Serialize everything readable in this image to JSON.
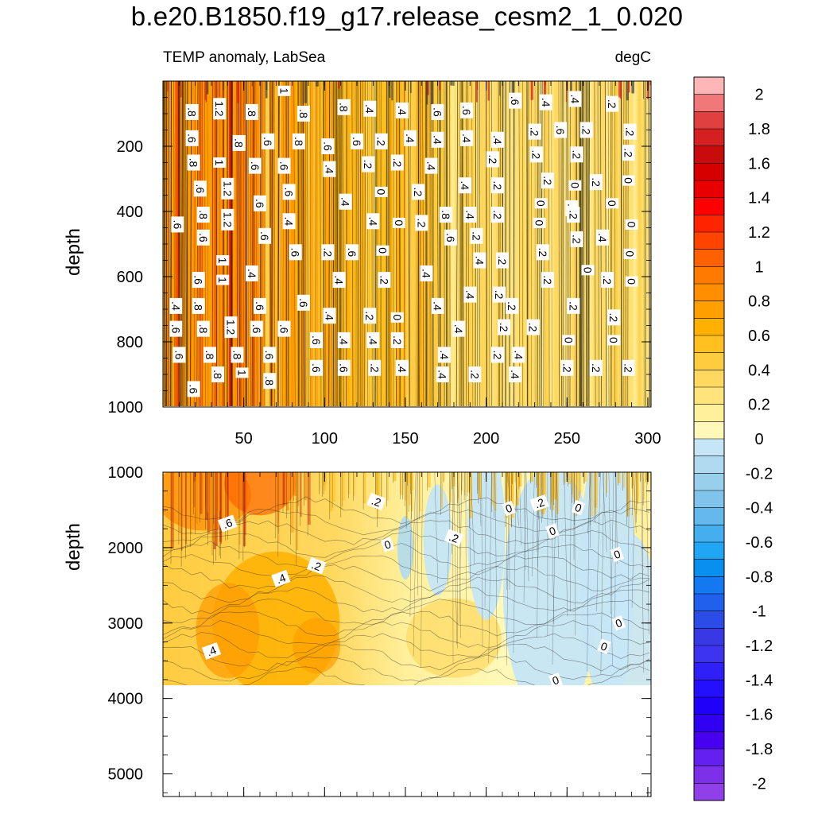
{
  "chart_data": {
    "type": "heatmap",
    "title": "b.e20.B1850.f19_g17.release_cesm2_1_0.020",
    "subtitle_left": "TEMP anomaly, LabSea",
    "subtitle_right": "degC",
    "x": {
      "range": [
        0,
        302
      ],
      "ticks": [
        50,
        100,
        150,
        200,
        250,
        300
      ],
      "tick_labels": [
        "50",
        "100",
        "150",
        "200",
        "250",
        "300"
      ]
    },
    "panels": [
      {
        "name": "upper",
        "ylabel": "depth",
        "ylim": [
          1000,
          0
        ],
        "y_ticks": [
          200,
          400,
          600,
          800,
          1000
        ],
        "y_tick_labels": [
          "200",
          "400",
          "600",
          "800",
          "1000"
        ],
        "description": "Upper ocean 0-1000 m, strongly vertical banded anomaly; warmest (about 0.8-1.2) for x < 60, about 0.4-0.6 mid, about 0-0.2 for x > 220",
        "contour_labels": [
          {
            "x": 18,
            "d": 95,
            "t": ".8"
          },
          {
            "x": 35,
            "d": 85,
            "t": "1.2"
          },
          {
            "x": 55,
            "d": 95,
            "t": ".8"
          },
          {
            "x": 75,
            "d": 30,
            "t": "1"
          },
          {
            "x": 87,
            "d": 100,
            "t": ".8"
          },
          {
            "x": 112,
            "d": 80,
            "t": ".8"
          },
          {
            "x": 128,
            "d": 85,
            "t": ".4"
          },
          {
            "x": 148,
            "d": 90,
            "t": ".4"
          },
          {
            "x": 170,
            "d": 95,
            "t": ".6"
          },
          {
            "x": 188,
            "d": 90,
            "t": ".6"
          },
          {
            "x": 218,
            "d": 60,
            "t": ".6"
          },
          {
            "x": 237,
            "d": 65,
            "t": ".4"
          },
          {
            "x": 255,
            "d": 55,
            "t": ".4"
          },
          {
            "x": 278,
            "d": 70,
            "t": ".2"
          },
          {
            "x": 18,
            "d": 175,
            "t": ".6"
          },
          {
            "x": 47,
            "d": 190,
            "t": ".8"
          },
          {
            "x": 65,
            "d": 185,
            "t": ".6"
          },
          {
            "x": 84,
            "d": 185,
            "t": ".8"
          },
          {
            "x": 102,
            "d": 200,
            "t": ".6"
          },
          {
            "x": 120,
            "d": 185,
            "t": ".6"
          },
          {
            "x": 135,
            "d": 185,
            "t": ".2"
          },
          {
            "x": 153,
            "d": 175,
            "t": ".4"
          },
          {
            "x": 170,
            "d": 180,
            "t": ".4"
          },
          {
            "x": 188,
            "d": 175,
            "t": ".4"
          },
          {
            "x": 207,
            "d": 180,
            "t": ".4"
          },
          {
            "x": 230,
            "d": 155,
            "t": ".2"
          },
          {
            "x": 246,
            "d": 150,
            "t": ".6"
          },
          {
            "x": 262,
            "d": 150,
            "t": ".2"
          },
          {
            "x": 289,
            "d": 155,
            "t": ".2"
          },
          {
            "x": 19,
            "d": 250,
            "t": ".8"
          },
          {
            "x": 35,
            "d": 250,
            "t": "1"
          },
          {
            "x": 57,
            "d": 260,
            "t": ".6"
          },
          {
            "x": 75,
            "d": 260,
            "t": ".6"
          },
          {
            "x": 103,
            "d": 270,
            "t": ".4"
          },
          {
            "x": 127,
            "d": 255,
            "t": ".2"
          },
          {
            "x": 145,
            "d": 250,
            "t": ".2"
          },
          {
            "x": 166,
            "d": 260,
            "t": ".4"
          },
          {
            "x": 204,
            "d": 240,
            "t": ".2"
          },
          {
            "x": 231,
            "d": 225,
            "t": ".2"
          },
          {
            "x": 256,
            "d": 225,
            "t": ".2"
          },
          {
            "x": 288,
            "d": 220,
            "t": ".2"
          },
          {
            "x": 23,
            "d": 330,
            "t": ".6"
          },
          {
            "x": 40,
            "d": 330,
            "t": "1.2"
          },
          {
            "x": 78,
            "d": 340,
            "t": ".6"
          },
          {
            "x": 135,
            "d": 340,
            "t": "0"
          },
          {
            "x": 158,
            "d": 340,
            "t": ".2"
          },
          {
            "x": 187,
            "d": 320,
            "t": ".4"
          },
          {
            "x": 207,
            "d": 320,
            "t": ".2"
          },
          {
            "x": 238,
            "d": 305,
            "t": ".2"
          },
          {
            "x": 255,
            "d": 320,
            "t": "0"
          },
          {
            "x": 268,
            "d": 310,
            "t": ".2"
          },
          {
            "x": 288,
            "d": 305,
            "t": "0"
          },
          {
            "x": 60,
            "d": 375,
            "t": ".6"
          },
          {
            "x": 113,
            "d": 370,
            "t": ".4"
          },
          {
            "x": 234,
            "d": 375,
            "t": "0"
          },
          {
            "x": 253,
            "d": 390,
            "t": ".2"
          },
          {
            "x": 278,
            "d": 375,
            "t": "0"
          },
          {
            "x": 9,
            "d": 440,
            "t": ".6"
          },
          {
            "x": 25,
            "d": 410,
            "t": ".8"
          },
          {
            "x": 40,
            "d": 425,
            "t": "1.2"
          },
          {
            "x": 78,
            "d": 430,
            "t": ".4"
          },
          {
            "x": 130,
            "d": 430,
            "t": ".4"
          },
          {
            "x": 146,
            "d": 435,
            "t": "0"
          },
          {
            "x": 160,
            "d": 435,
            "t": ".2"
          },
          {
            "x": 175,
            "d": 410,
            "t": ".8"
          },
          {
            "x": 190,
            "d": 410,
            "t": ".4"
          },
          {
            "x": 207,
            "d": 410,
            "t": ".2"
          },
          {
            "x": 233,
            "d": 435,
            "t": "0"
          },
          {
            "x": 254,
            "d": 410,
            "t": ".2"
          },
          {
            "x": 290,
            "d": 440,
            "t": "0"
          },
          {
            "x": 25,
            "d": 480,
            "t": ".6"
          },
          {
            "x": 63,
            "d": 475,
            "t": ".6"
          },
          {
            "x": 178,
            "d": 480,
            "t": ".6"
          },
          {
            "x": 194,
            "d": 475,
            "t": ".2"
          },
          {
            "x": 256,
            "d": 485,
            "t": ".2"
          },
          {
            "x": 272,
            "d": 480,
            "t": ".4"
          },
          {
            "x": 37,
            "d": 550,
            "t": "1"
          },
          {
            "x": 82,
            "d": 525,
            "t": ".6"
          },
          {
            "x": 102,
            "d": 525,
            "t": ".2"
          },
          {
            "x": 117,
            "d": 525,
            "t": ".6"
          },
          {
            "x": 136,
            "d": 520,
            "t": "0"
          },
          {
            "x": 196,
            "d": 550,
            "t": ".4"
          },
          {
            "x": 210,
            "d": 550,
            "t": ".2"
          },
          {
            "x": 235,
            "d": 525,
            "t": ".2"
          },
          {
            "x": 289,
            "d": 530,
            "t": "0"
          },
          {
            "x": 55,
            "d": 590,
            "t": ".4"
          },
          {
            "x": 163,
            "d": 590,
            "t": ".4"
          },
          {
            "x": 263,
            "d": 580,
            "t": "0"
          },
          {
            "x": 22,
            "d": 610,
            "t": ".6"
          },
          {
            "x": 37,
            "d": 610,
            "t": "1"
          },
          {
            "x": 109,
            "d": 610,
            "t": ".4"
          },
          {
            "x": 137,
            "d": 610,
            "t": ".2"
          },
          {
            "x": 238,
            "d": 610,
            "t": ".2"
          },
          {
            "x": 275,
            "d": 610,
            "t": ".2"
          },
          {
            "x": 290,
            "d": 615,
            "t": "0"
          },
          {
            "x": 190,
            "d": 655,
            "t": ".4"
          },
          {
            "x": 208,
            "d": 655,
            "t": ".2"
          },
          {
            "x": 8,
            "d": 690,
            "t": ".4"
          },
          {
            "x": 22,
            "d": 690,
            "t": ".8"
          },
          {
            "x": 60,
            "d": 690,
            "t": ".6"
          },
          {
            "x": 87,
            "d": 680,
            "t": ".6"
          },
          {
            "x": 170,
            "d": 690,
            "t": ".4"
          },
          {
            "x": 216,
            "d": 690,
            "t": ".2"
          },
          {
            "x": 254,
            "d": 690,
            "t": ".2"
          },
          {
            "x": 103,
            "d": 720,
            "t": ".4"
          },
          {
            "x": 128,
            "d": 720,
            "t": ".2"
          },
          {
            "x": 145,
            "d": 725,
            "t": "0"
          },
          {
            "x": 279,
            "d": 725,
            "t": ".2"
          },
          {
            "x": 8,
            "d": 760,
            "t": ".6"
          },
          {
            "x": 25,
            "d": 760,
            "t": ".8"
          },
          {
            "x": 42,
            "d": 755,
            "t": "1.2"
          },
          {
            "x": 58,
            "d": 760,
            "t": ".6"
          },
          {
            "x": 75,
            "d": 760,
            "t": ".6"
          },
          {
            "x": 183,
            "d": 760,
            "t": ".4"
          },
          {
            "x": 211,
            "d": 755,
            "t": ".2"
          },
          {
            "x": 229,
            "d": 755,
            "t": ".2"
          },
          {
            "x": 95,
            "d": 795,
            "t": ".6"
          },
          {
            "x": 112,
            "d": 795,
            "t": ".4"
          },
          {
            "x": 130,
            "d": 795,
            "t": ".4"
          },
          {
            "x": 145,
            "d": 795,
            "t": ".2"
          },
          {
            "x": 251,
            "d": 795,
            "t": "0"
          },
          {
            "x": 279,
            "d": 795,
            "t": "0"
          },
          {
            "x": 10,
            "d": 840,
            "t": ".6"
          },
          {
            "x": 29,
            "d": 840,
            "t": ".8"
          },
          {
            "x": 46,
            "d": 840,
            "t": ".8"
          },
          {
            "x": 66,
            "d": 840,
            "t": ".6"
          },
          {
            "x": 174,
            "d": 840,
            "t": ".4"
          },
          {
            "x": 207,
            "d": 840,
            "t": ".2"
          },
          {
            "x": 220,
            "d": 840,
            "t": ".4"
          },
          {
            "x": 95,
            "d": 880,
            "t": ".6"
          },
          {
            "x": 112,
            "d": 880,
            "t": ".6"
          },
          {
            "x": 131,
            "d": 880,
            "t": ".2"
          },
          {
            "x": 148,
            "d": 880,
            "t": ".4"
          },
          {
            "x": 250,
            "d": 880,
            "t": ".2"
          },
          {
            "x": 268,
            "d": 880,
            "t": ".2"
          },
          {
            "x": 288,
            "d": 880,
            "t": ".2"
          },
          {
            "x": 34,
            "d": 900,
            "t": ".8"
          },
          {
            "x": 49,
            "d": 895,
            "t": "1"
          },
          {
            "x": 66,
            "d": 920,
            "t": ".8"
          },
          {
            "x": 173,
            "d": 900,
            "t": ".4"
          },
          {
            "x": 193,
            "d": 900,
            "t": ".2"
          },
          {
            "x": 218,
            "d": 900,
            "t": ".4"
          },
          {
            "x": 19,
            "d": 945,
            "t": ".6"
          }
        ]
      },
      {
        "name": "lower",
        "ylabel": "depth",
        "ylim": [
          5300,
          1000
        ],
        "y_ticks": [
          1000,
          2000,
          3000,
          4000,
          5000
        ],
        "y_tick_labels": [
          "1000",
          "2000",
          "3000",
          "4000",
          "5000"
        ],
        "data_bottom_depth": 3860,
        "description": "Deep ocean 1000-5300 m; warm core (0.4-0.6) near x 30-110 at 2500-3700 m, cool (slightly negative) region x > 190",
        "contour_labels": [
          {
            "x": 132,
            "d": 1390,
            "t": ".2"
          },
          {
            "x": 214,
            "d": 1480,
            "t": "0"
          },
          {
            "x": 233,
            "d": 1410,
            "t": ".2"
          },
          {
            "x": 257,
            "d": 1470,
            "t": "0"
          },
          {
            "x": 40,
            "d": 1680,
            "t": ".6"
          },
          {
            "x": 241,
            "d": 1780,
            "t": "0"
          },
          {
            "x": 180,
            "d": 1870,
            "t": ".2"
          },
          {
            "x": 139,
            "d": 1960,
            "t": "0"
          },
          {
            "x": 281,
            "d": 2090,
            "t": "0"
          },
          {
            "x": 95,
            "d": 2240,
            "t": ".2"
          },
          {
            "x": 73,
            "d": 2410,
            "t": ".4"
          },
          {
            "x": 282,
            "d": 3000,
            "t": "0"
          },
          {
            "x": 273,
            "d": 3310,
            "t": "0"
          },
          {
            "x": 30,
            "d": 3370,
            "t": ".4"
          },
          {
            "x": 243,
            "d": 3760,
            "t": "0"
          }
        ]
      }
    ],
    "colorbar": {
      "levels": [
        2,
        1.9,
        1.8,
        1.7,
        1.6,
        1.5,
        1.4,
        1.3,
        1.2,
        1.1,
        1,
        0.9,
        0.8,
        0.7,
        0.6,
        0.5,
        0.4,
        0.3,
        0.2,
        0.1,
        0,
        -0.1,
        -0.2,
        -0.3,
        -0.4,
        -0.5,
        -0.6,
        -0.7,
        -0.8,
        -0.9,
        -1,
        -1.1,
        -1.2,
        -1.3,
        -1.4,
        -1.5,
        -1.6,
        -1.7,
        -1.8,
        -1.9,
        -2
      ],
      "labels": [
        "2",
        "1.8",
        "1.6",
        "1.4",
        "1.2",
        "1",
        "0.8",
        "0.6",
        "0.4",
        "0.2",
        "0",
        "-0.2",
        "-0.4",
        "-0.6",
        "-0.8",
        "-1",
        "-1.2",
        "-1.4",
        "-1.6",
        "-1.8",
        "-2"
      ],
      "colors": [
        "#ffb6b6",
        "#f07878",
        "#e04040",
        "#d42020",
        "#c80c0c",
        "#d60000",
        "#e80000",
        "#ff0000",
        "#ff2400",
        "#ff4400",
        "#ff6000",
        "#ff7a00",
        "#ff8e00",
        "#ffa000",
        "#ffb000",
        "#ffc020",
        "#ffcc40",
        "#ffd860",
        "#ffe47c",
        "#fff09c",
        "#fff8b8",
        "#c6e6f6",
        "#b0daf0",
        "#98d0ec",
        "#80c4ec",
        "#64b8ec",
        "#44aeee",
        "#20a6f4",
        "#0890f0",
        "#1478f0",
        "#2060ec",
        "#2c4ce8",
        "#3838e4",
        "#3c34f0",
        "#3020f8",
        "#2410fc",
        "#2000f8",
        "#3000f0",
        "#4800f0",
        "#6420f0",
        "#7c30e8",
        "#9040e8"
      ]
    },
    "colors": {
      "line": "#000000",
      "dark_line": "#1a1a1a"
    }
  }
}
